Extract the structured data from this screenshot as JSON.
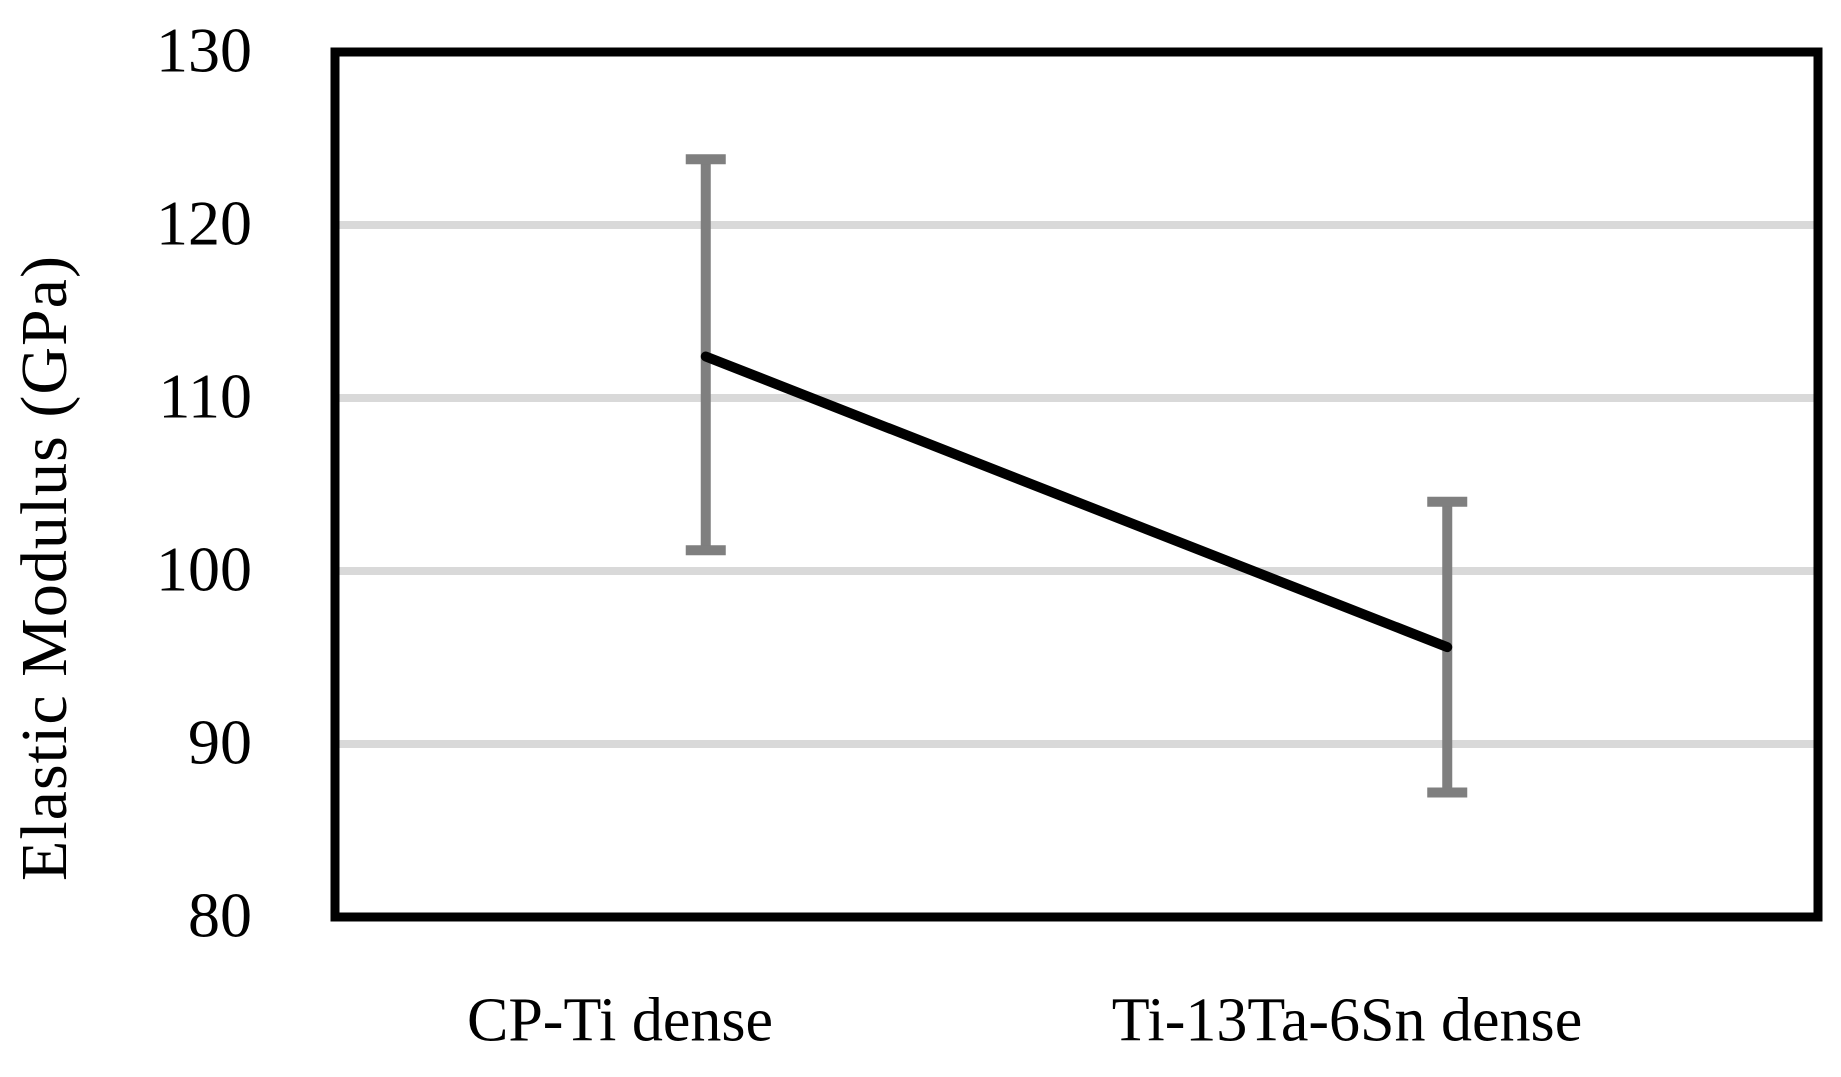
{
  "chart_data": {
    "type": "line",
    "categories": [
      "CP-Ti dense",
      "Ti-13Ta-6Sn dense"
    ],
    "series": [
      {
        "name": "Elastic Modulus",
        "values": [
          112.4,
          95.6
        ],
        "error_upper": [
          123.8,
          104.0
        ],
        "error_lower": [
          101.2,
          87.2
        ]
      }
    ],
    "title": "",
    "xlabel": "",
    "ylabel": "Elastic Modulus (GPa)",
    "ylim": [
      80,
      130
    ],
    "yticks": [
      80,
      90,
      100,
      110,
      120,
      130
    ],
    "grid": true,
    "legend": false,
    "colors": {
      "line": "#000000",
      "error_bar": "#7f7f7f",
      "gridline": "#d9d9d9",
      "plot_border": "#000000",
      "text": "#000000",
      "background": "#ffffff"
    }
  }
}
